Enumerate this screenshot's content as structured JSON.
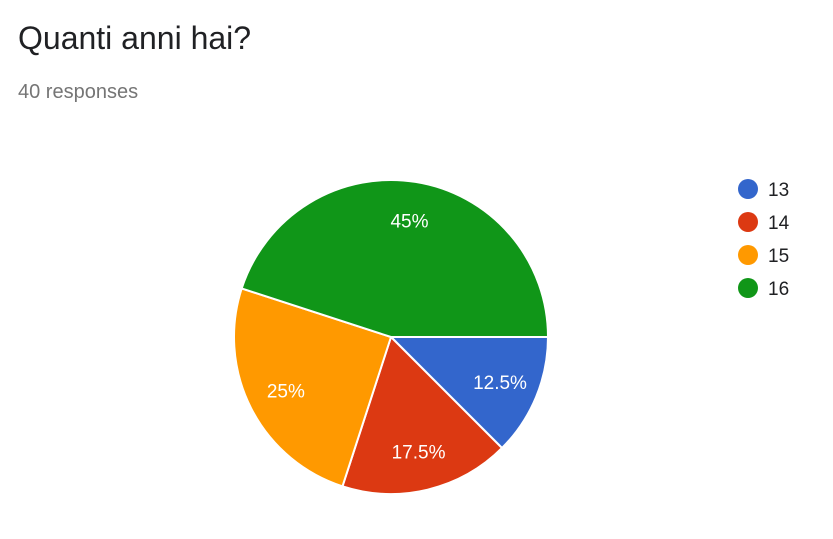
{
  "header": {
    "title": "Quanti anni hai?",
    "responses": "40 responses"
  },
  "chart_data": {
    "type": "pie",
    "categories": [
      "13",
      "14",
      "15",
      "16"
    ],
    "values": [
      12.5,
      17.5,
      25,
      45
    ],
    "slice_labels": [
      "12.5%",
      "17.5%",
      "25%",
      "45%"
    ],
    "colors": [
      "#3366cc",
      "#dc3912",
      "#ff9900",
      "#109618"
    ],
    "legend": {
      "entries": [
        "13",
        "14",
        "15",
        "16"
      ],
      "position": "right"
    }
  }
}
